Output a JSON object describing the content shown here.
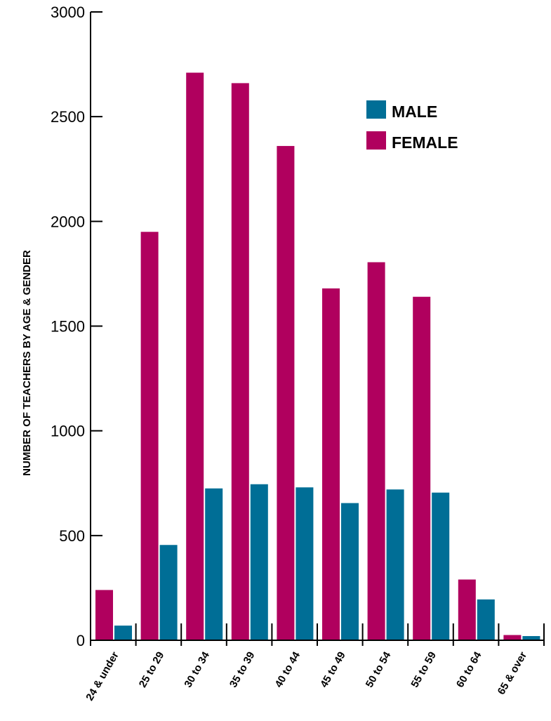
{
  "chart_data": {
    "type": "bar",
    "title": "",
    "xlabel": "",
    "ylabel": "NUMBER OF TEACHERS BY AGE & GENDER",
    "ylim": [
      0,
      3000
    ],
    "yticks": [
      0,
      500,
      1000,
      1500,
      2000,
      2500,
      3000
    ],
    "categories": [
      "24 & under",
      "25 to 29",
      "30 to 34",
      "35 to 39",
      "40 to 44",
      "45 to 49",
      "50 to 54",
      "55 to 59",
      "60 to 64",
      "65 & over"
    ],
    "series": [
      {
        "name": "FEMALE",
        "color": "#b0005e",
        "values": [
          240,
          1950,
          2710,
          2660,
          2360,
          1680,
          1805,
          1640,
          290,
          25
        ]
      },
      {
        "name": "MALE",
        "color": "#006e96",
        "values": [
          70,
          455,
          725,
          745,
          730,
          655,
          720,
          705,
          195,
          20
        ]
      }
    ],
    "legend": {
      "position": "top-right",
      "items": [
        {
          "label": "MALE",
          "color": "#006e96"
        },
        {
          "label": "FEMALE",
          "color": "#b0005e"
        }
      ]
    },
    "grid": false
  }
}
